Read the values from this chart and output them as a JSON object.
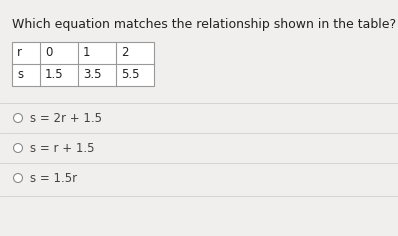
{
  "title": "Which equation matches the relationship shown in the table?",
  "title_fontsize": 9.0,
  "table_headers": [
    "r",
    "0",
    "1",
    "2"
  ],
  "table_row2": [
    "s",
    "1.5",
    "3.5",
    "5.5"
  ],
  "options": [
    "s = 2r + 1.5",
    "s = r + 1.5",
    "s = 1.5r"
  ],
  "bg_color": "#f0efed",
  "table_border_color": "#999999",
  "option_text_color": "#444444",
  "title_color": "#222222",
  "font_size_table": 8.5,
  "font_size_options": 8.5,
  "circle_color": "#888888",
  "separator_color": "#d0d0d0"
}
